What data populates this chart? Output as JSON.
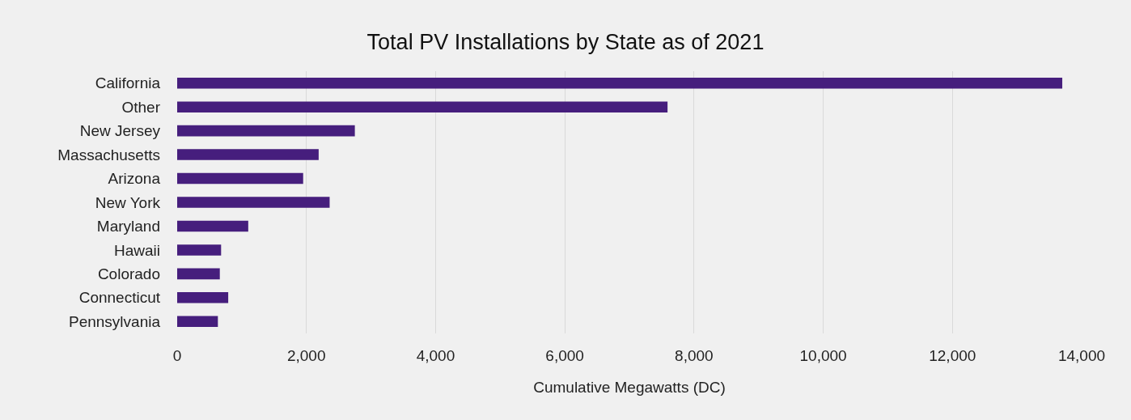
{
  "chart_data": {
    "type": "bar",
    "orientation": "horizontal",
    "title": "Total PV Installations by State as of 2021",
    "xlabel": "Cumulative Megawatts (DC)",
    "categories": [
      "California",
      "Other",
      "New Jersey",
      "Massachusetts",
      "Arizona",
      "New York",
      "Maryland",
      "Hawaii",
      "Colorado",
      "Connecticut",
      "Pennsylvania"
    ],
    "values": [
      13700,
      7590,
      2750,
      2190,
      1950,
      2360,
      1100,
      680,
      660,
      790,
      630
    ],
    "color": "#461e7d",
    "xlim": [
      0,
      14000
    ],
    "xticks": [
      0,
      {
        "value": 2000,
        "label": "2,000"
      },
      {
        "value": 4000,
        "label": "4,000"
      },
      {
        "value": 6000,
        "label": "6,000"
      },
      {
        "value": 8000,
        "label": "8,000"
      },
      {
        "value": 10000,
        "label": "10,000"
      },
      {
        "value": 12000,
        "label": "12,000"
      },
      {
        "value": 14000,
        "label": "14,000"
      }
    ],
    "grid": "x"
  }
}
